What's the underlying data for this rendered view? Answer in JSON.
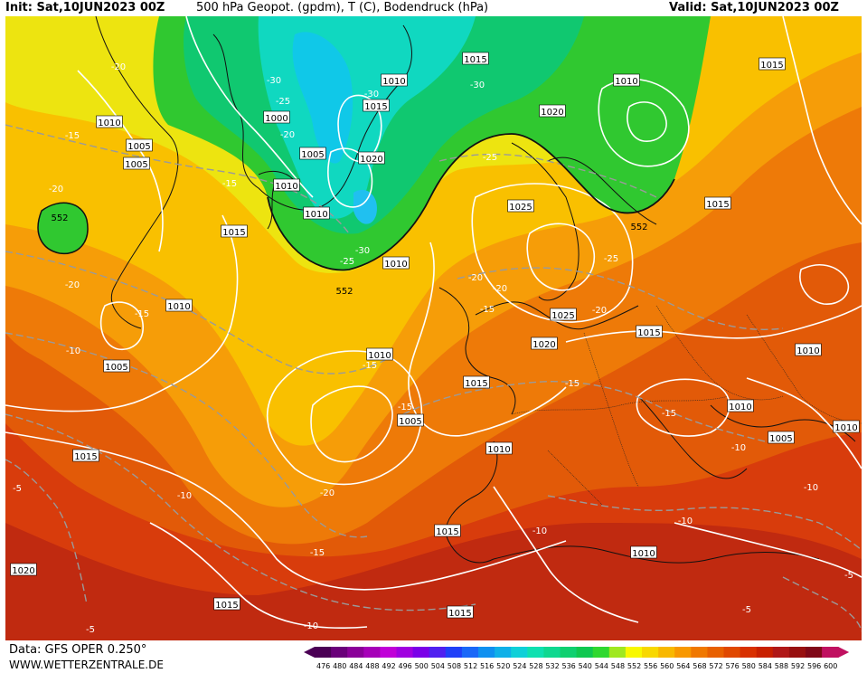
{
  "header": {
    "init": "Init: Sat,10JUN2023 00Z",
    "title": "500 hPa Geopot. (gpdm), T (C), Bodendruck (hPa)",
    "valid": "Valid: Sat,10JUN2023 00Z"
  },
  "footer": {
    "data_source": "Data: GFS OPER 0.250°",
    "website": "WWW.WETTERZENTRALE.DE"
  },
  "legend": {
    "values": [
      "476",
      "480",
      "484",
      "488",
      "492",
      "496",
      "500",
      "504",
      "508",
      "512",
      "516",
      "520",
      "524",
      "528",
      "532",
      "536",
      "540",
      "544",
      "548",
      "552",
      "556",
      "560",
      "564",
      "568",
      "572",
      "576",
      "580",
      "584",
      "588",
      "592",
      "596",
      "600"
    ],
    "colors": [
      "#4b0055",
      "#6a007a",
      "#8a0099",
      "#a600b8",
      "#c000d8",
      "#a000e0",
      "#7a00e8",
      "#5020f0",
      "#2040f8",
      "#1a68f8",
      "#1090f0",
      "#10b0e8",
      "#10d0d8",
      "#10e0b0",
      "#10d890",
      "#10d070",
      "#10c850",
      "#30d830",
      "#a0e820",
      "#f8f800",
      "#f8d800",
      "#f8b800",
      "#f89800",
      "#f07800",
      "#e86000",
      "#e04800",
      "#d83000",
      "#c82000",
      "#b01818",
      "#981010",
      "#800818",
      "#c01060"
    ]
  },
  "map": {
    "region": "North Atlantic / Europe",
    "pressure_labels": [
      {
        "text": "1015"
      },
      {
        "text": "1010"
      },
      {
        "text": "1015"
      },
      {
        "text": "1010"
      },
      {
        "text": "1020"
      },
      {
        "text": "1015"
      },
      {
        "text": "1010"
      },
      {
        "text": "1005"
      },
      {
        "text": "1005"
      },
      {
        "text": "1000"
      },
      {
        "text": "1005"
      },
      {
        "text": "1020"
      },
      {
        "text": "1010"
      },
      {
        "text": "1010"
      },
      {
        "text": "1015"
      },
      {
        "text": "1010"
      },
      {
        "text": "1025"
      },
      {
        "text": "1015"
      },
      {
        "text": "1010"
      },
      {
        "text": "1025"
      },
      {
        "text": "1020"
      },
      {
        "text": "1015"
      },
      {
        "text": "1010"
      },
      {
        "text": "1005"
      },
      {
        "text": "1015"
      },
      {
        "text": "1010"
      },
      {
        "text": "1005"
      },
      {
        "text": "1010"
      },
      {
        "text": "1005"
      },
      {
        "text": "1010"
      },
      {
        "text": "1015"
      },
      {
        "text": "1010"
      },
      {
        "text": "1020"
      },
      {
        "text": "1015"
      },
      {
        "text": "1015"
      },
      {
        "text": "1010"
      },
      {
        "text": "1015"
      }
    ],
    "temp_labels": [
      {
        "text": "-20"
      },
      {
        "text": "-15"
      },
      {
        "text": "-20"
      },
      {
        "text": "-20"
      },
      {
        "text": "-15"
      },
      {
        "text": "-10"
      },
      {
        "text": "-5"
      },
      {
        "text": "-30"
      },
      {
        "text": "-25"
      },
      {
        "text": "-20"
      },
      {
        "text": "-30"
      },
      {
        "text": "-30"
      },
      {
        "text": "-25"
      },
      {
        "text": "-15"
      },
      {
        "text": "-25"
      },
      {
        "text": "-30"
      },
      {
        "text": "-20"
      },
      {
        "text": "-20"
      },
      {
        "text": "-15"
      },
      {
        "text": "-25"
      },
      {
        "text": "-20"
      },
      {
        "text": "-15"
      },
      {
        "text": "-15"
      },
      {
        "text": "-15"
      },
      {
        "text": "-10"
      },
      {
        "text": "-20"
      },
      {
        "text": "-15"
      },
      {
        "text": "-10"
      },
      {
        "text": "-10"
      },
      {
        "text": "-10"
      },
      {
        "text": "-10"
      },
      {
        "text": "-5"
      },
      {
        "text": "-5"
      },
      {
        "text": "-15"
      },
      {
        "text": "-5"
      },
      {
        "text": "-10"
      }
    ],
    "geopot_labels": [
      {
        "text": "552"
      },
      {
        "text": "552"
      },
      {
        "text": "552"
      }
    ]
  }
}
